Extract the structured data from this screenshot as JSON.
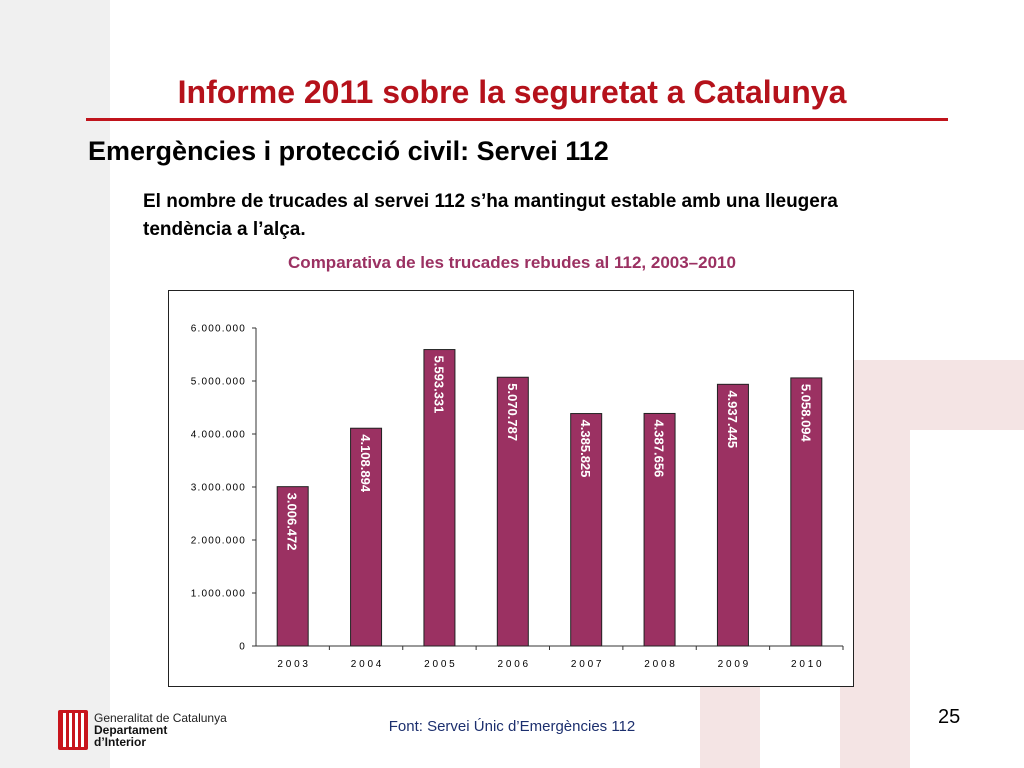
{
  "slide": {
    "title": "Informe 2011 sobre la seguretat a Catalunya",
    "subtitle": "Emergències i protecció civil: Servei 112",
    "description": "El nombre de trucades al servei 112 s’ha mantingut estable amb una lleugera tendència a l’alça.",
    "chart_heading": "Comparativa de les trucades rebudes al 112, 2003–2010",
    "source": "Font: Servei Únic d’Emergències 112",
    "page_number": "25"
  },
  "logo": {
    "line1": "Generalitat de Catalunya",
    "line2": "Departament",
    "line3": "d’Interior"
  },
  "colors": {
    "title": "#b5121b",
    "chart_heading": "#9b3162",
    "bar": "#9b3162",
    "source": "#1c2f6e"
  },
  "chart_data": {
    "type": "bar",
    "categories": [
      "2003",
      "2004",
      "2005",
      "2006",
      "2007",
      "2008",
      "2009",
      "2010"
    ],
    "values": [
      3006472,
      4108894,
      5593331,
      5070787,
      4385825,
      4387656,
      4937445,
      5058094
    ],
    "data_labels": [
      "3.006.472",
      "4.108.894",
      "5.593.331",
      "5.070.787",
      "4.385.825",
      "4.387.656",
      "4.937.445",
      "5.058.094"
    ],
    "y_ticks": [
      0,
      1000000,
      2000000,
      3000000,
      4000000,
      5000000,
      6000000
    ],
    "y_tick_labels": [
      "0",
      "1.000.000",
      "2.000.000",
      "3.000.000",
      "4.000.000",
      "5.000.000",
      "6.000.000"
    ],
    "x_tick_labels": [
      "2 0 0 3",
      "2 0 0 4",
      "2 0 0 5",
      "2 0 0 6",
      "2 0 0 7",
      "2 0 0 8",
      "2 0 0 9",
      "2 0 1 0"
    ],
    "ylim": [
      0,
      6000000
    ],
    "grid": false,
    "legend": "none"
  }
}
